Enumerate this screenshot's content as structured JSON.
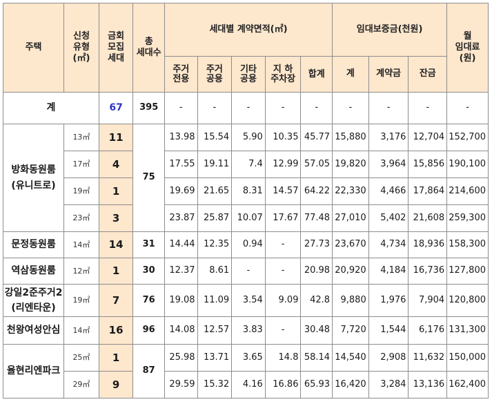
{
  "header": {
    "house": "주택",
    "app_type": [
      "신청",
      "유형",
      "(㎡)"
    ],
    "quota": [
      "금회",
      "모집",
      "세대"
    ],
    "total_units": [
      "총",
      "세대수"
    ],
    "area_group": "세대별 계약면적(㎡)",
    "deposit_group": "임대보증금(천원)",
    "rent": [
      "월",
      "임대료",
      "(원)"
    ],
    "area_cols": [
      [
        "주거",
        "전용"
      ],
      [
        "주거",
        "공용"
      ],
      [
        "기타",
        "공용"
      ],
      [
        "지 하",
        "주차장"
      ],
      [
        "합계"
      ]
    ],
    "deposit_cols": [
      "계",
      "계약금",
      "잔금"
    ]
  },
  "summary": {
    "label": "계",
    "quota": "67",
    "total_units": "395",
    "dashes": [
      "-",
      "-",
      "-",
      "-",
      "-",
      "-",
      "-",
      "-",
      "-"
    ]
  },
  "groups": [
    {
      "name": [
        "방화동원룸",
        "(유니트로)"
      ],
      "total_units": "75",
      "rows": [
        {
          "type": "13㎡",
          "quota": "11",
          "v": [
            "13.98",
            "15.54",
            "5.90",
            "10.35",
            "45.77",
            "15,880",
            "3,176",
            "12,704",
            "152,700"
          ]
        },
        {
          "type": "17㎡",
          "quota": "4",
          "v": [
            "17.55",
            "19.11",
            "7.4",
            "12.99",
            "57.05",
            "19,820",
            "3,964",
            "15,856",
            "190,100"
          ]
        },
        {
          "type": "19㎡",
          "quota": "1",
          "v": [
            "19.69",
            "21.65",
            "8.31",
            "14.57",
            "64.22",
            "22,330",
            "4,466",
            "17,864",
            "214,600"
          ]
        },
        {
          "type": "23㎡",
          "quota": "3",
          "v": [
            "23.87",
            "25.87",
            "10.07",
            "17.67",
            "77.48",
            "27,010",
            "5,402",
            "21,608",
            "259,300"
          ]
        }
      ]
    },
    {
      "name": [
        "문정동원룸"
      ],
      "total_units": "31",
      "rows": [
        {
          "type": "14㎡",
          "quota": "14",
          "v": [
            "14.44",
            "12.35",
            "0.94",
            "-",
            "27.73",
            "23,670",
            "4,734",
            "18,936",
            "158,300"
          ]
        }
      ]
    },
    {
      "name": [
        "역삼동원룸"
      ],
      "total_units": "30",
      "rows": [
        {
          "type": "12㎡",
          "quota": "1",
          "v": [
            "12.37",
            "8.61",
            "-",
            "-",
            "20.98",
            "20,920",
            "4,184",
            "16,736",
            "127,800"
          ]
        }
      ]
    },
    {
      "name": [
        "강일2준주거2",
        "(리엔타운)"
      ],
      "total_units": "76",
      "rows": [
        {
          "type": "19㎡",
          "quota": "7",
          "v": [
            "19.08",
            "11.09",
            "3.54",
            "9.09",
            "42.8",
            "9,880",
            "1,976",
            "7,904",
            "120,800"
          ]
        }
      ]
    },
    {
      "name": [
        "천왕여성안심"
      ],
      "total_units": "96",
      "rows": [
        {
          "type": "14㎡",
          "quota": "16",
          "v": [
            "14.08",
            "12.57",
            "3.83",
            "-",
            "30.48",
            "7,720",
            "1,544",
            "6,176",
            "131,300"
          ]
        }
      ]
    },
    {
      "name": [
        "율현리엔파크"
      ],
      "total_units": "87",
      "rows": [
        {
          "type": "25㎡",
          "quota": "1",
          "v": [
            "25.98",
            "13.71",
            "3.65",
            "14.8",
            "58.14",
            "14,540",
            "2,908",
            "11,632",
            "150,000"
          ]
        },
        {
          "type": "29㎡",
          "quota": "9",
          "v": [
            "29.59",
            "15.32",
            "4.16",
            "16.86",
            "65.93",
            "16,420",
            "3,284",
            "13,136",
            "162,400"
          ]
        }
      ]
    }
  ]
}
